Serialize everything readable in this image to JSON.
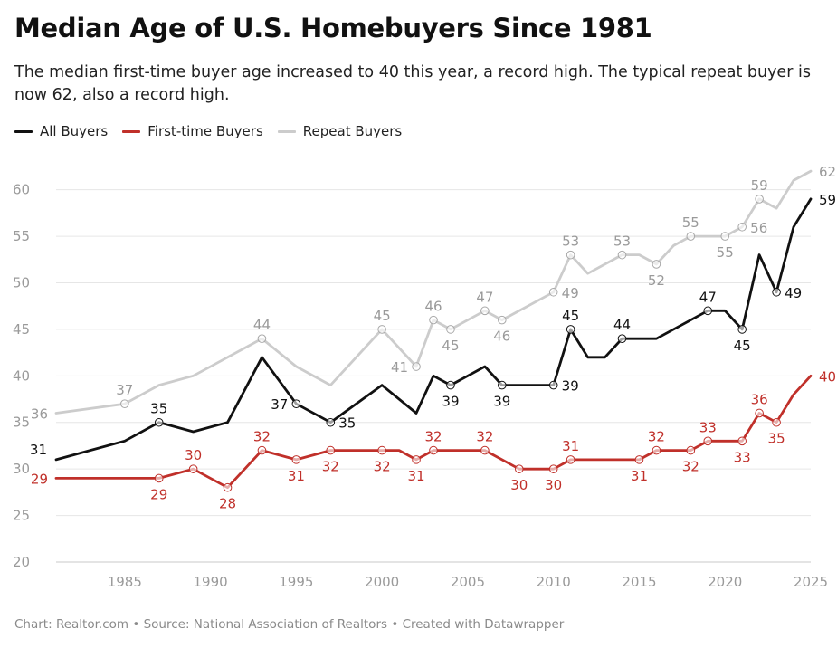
{
  "chart_data": {
    "type": "line",
    "title": "Median Age of U.S. Homebuyers Since 1981",
    "subtitle": "The median first-time buyer age increased to 40 this year, a record high. The typical repeat buyer is now 62, also a record high.",
    "footer": "Chart: Realtor.com • Source: National Association of Realtors • Created with Datawrapper",
    "xlim": [
      1981,
      2025
    ],
    "ylim": [
      20,
      62
    ],
    "yticks": [
      20,
      25,
      30,
      35,
      40,
      45,
      50,
      55,
      60
    ],
    "xticks": [
      1985,
      1990,
      1995,
      2000,
      2005,
      2010,
      2015,
      2020,
      2025
    ],
    "grid": true,
    "legend_position": "top-left",
    "series": [
      {
        "name": "Repeat Buyers",
        "color": "#cccccc",
        "label_color": "#9a9a9a",
        "points": [
          [
            1981,
            36
          ],
          [
            1985,
            37
          ],
          [
            1987,
            39
          ],
          [
            1989,
            40
          ],
          [
            1991,
            42
          ],
          [
            1993,
            44
          ],
          [
            1995,
            41
          ],
          [
            1997,
            39
          ],
          [
            2000,
            45
          ],
          [
            2002,
            41
          ],
          [
            2003,
            46
          ],
          [
            2004,
            45
          ],
          [
            2006,
            47
          ],
          [
            2007,
            46
          ],
          [
            2010,
            49
          ],
          [
            2011,
            53
          ],
          [
            2012,
            51
          ],
          [
            2014,
            53
          ],
          [
            2015,
            53
          ],
          [
            2016,
            52
          ],
          [
            2017,
            54
          ],
          [
            2018,
            55
          ],
          [
            2020,
            55
          ],
          [
            2021,
            56
          ],
          [
            2022,
            59
          ],
          [
            2023,
            58
          ],
          [
            2024,
            61
          ],
          [
            2025,
            62
          ]
        ],
        "markers": [
          [
            1985,
            37
          ],
          [
            1993,
            44
          ],
          [
            2000,
            45
          ],
          [
            2002,
            41
          ],
          [
            2003,
            46
          ],
          [
            2004,
            45
          ],
          [
            2006,
            47
          ],
          [
            2007,
            46
          ],
          [
            2010,
            49
          ],
          [
            2011,
            53
          ],
          [
            2014,
            53
          ],
          [
            2016,
            52
          ],
          [
            2018,
            55
          ],
          [
            2020,
            55
          ],
          [
            2021,
            56
          ],
          [
            2022,
            59
          ]
        ],
        "labels": [
          {
            "x": 1981,
            "y": 36,
            "text": "36",
            "pos": "left"
          },
          {
            "x": 1985,
            "y": 37,
            "text": "37",
            "pos": "above"
          },
          {
            "x": 1993,
            "y": 44,
            "text": "44",
            "pos": "above"
          },
          {
            "x": 2000,
            "y": 45,
            "text": "45",
            "pos": "above"
          },
          {
            "x": 2002,
            "y": 41,
            "text": "41",
            "pos": "left"
          },
          {
            "x": 2003,
            "y": 46,
            "text": "46",
            "pos": "above"
          },
          {
            "x": 2004,
            "y": 45,
            "text": "45",
            "pos": "below"
          },
          {
            "x": 2006,
            "y": 47,
            "text": "47",
            "pos": "above"
          },
          {
            "x": 2007,
            "y": 46,
            "text": "46",
            "pos": "below"
          },
          {
            "x": 2010,
            "y": 49,
            "text": "49",
            "pos": "right"
          },
          {
            "x": 2011,
            "y": 53,
            "text": "53",
            "pos": "above"
          },
          {
            "x": 2014,
            "y": 53,
            "text": "53",
            "pos": "above"
          },
          {
            "x": 2016,
            "y": 52,
            "text": "52",
            "pos": "below"
          },
          {
            "x": 2018,
            "y": 55,
            "text": "55",
            "pos": "above"
          },
          {
            "x": 2020,
            "y": 55,
            "text": "55",
            "pos": "below"
          },
          {
            "x": 2021,
            "y": 56,
            "text": "56",
            "pos": "right"
          },
          {
            "x": 2022,
            "y": 59,
            "text": "59",
            "pos": "above"
          },
          {
            "x": 2025,
            "y": 62,
            "text": "62",
            "pos": "right"
          }
        ]
      },
      {
        "name": "All Buyers",
        "color": "#111111",
        "label_color": "#111111",
        "points": [
          [
            1981,
            31
          ],
          [
            1985,
            33
          ],
          [
            1987,
            35
          ],
          [
            1989,
            34
          ],
          [
            1991,
            35
          ],
          [
            1993,
            42
          ],
          [
            1995,
            37
          ],
          [
            1997,
            35
          ],
          [
            2000,
            39
          ],
          [
            2002,
            36
          ],
          [
            2003,
            40
          ],
          [
            2004,
            39
          ],
          [
            2006,
            41
          ],
          [
            2007,
            39
          ],
          [
            2010,
            39
          ],
          [
            2011,
            45
          ],
          [
            2012,
            42
          ],
          [
            2013,
            42
          ],
          [
            2014,
            44
          ],
          [
            2016,
            44
          ],
          [
            2019,
            47
          ],
          [
            2020,
            47
          ],
          [
            2021,
            45
          ],
          [
            2022,
            53
          ],
          [
            2023,
            49
          ],
          [
            2024,
            56
          ],
          [
            2025,
            59
          ]
        ],
        "markers": [
          [
            1987,
            35
          ],
          [
            1995,
            37
          ],
          [
            1997,
            35
          ],
          [
            2004,
            39
          ],
          [
            2007,
            39
          ],
          [
            2010,
            39
          ],
          [
            2011,
            45
          ],
          [
            2014,
            44
          ],
          [
            2019,
            47
          ],
          [
            2021,
            45
          ],
          [
            2023,
            49
          ]
        ],
        "labels": [
          {
            "x": 1981,
            "y": 31,
            "text": "31",
            "pos": "aboveleft"
          },
          {
            "x": 1987,
            "y": 35,
            "text": "35",
            "pos": "above"
          },
          {
            "x": 1995,
            "y": 37,
            "text": "37",
            "pos": "left"
          },
          {
            "x": 1997,
            "y": 35,
            "text": "35",
            "pos": "right"
          },
          {
            "x": 2004,
            "y": 39,
            "text": "39",
            "pos": "below"
          },
          {
            "x": 2007,
            "y": 39,
            "text": "39",
            "pos": "below"
          },
          {
            "x": 2010,
            "y": 39,
            "text": "39",
            "pos": "right"
          },
          {
            "x": 2011,
            "y": 45,
            "text": "45",
            "pos": "above"
          },
          {
            "x": 2014,
            "y": 44,
            "text": "44",
            "pos": "above"
          },
          {
            "x": 2019,
            "y": 47,
            "text": "47",
            "pos": "above"
          },
          {
            "x": 2021,
            "y": 45,
            "text": "45",
            "pos": "below"
          },
          {
            "x": 2023,
            "y": 49,
            "text": "49",
            "pos": "right"
          },
          {
            "x": 2025,
            "y": 59,
            "text": "59",
            "pos": "right"
          }
        ]
      },
      {
        "name": "First-time Buyers",
        "color": "#c0302a",
        "label_color": "#c0302a",
        "points": [
          [
            1981,
            29
          ],
          [
            1985,
            29
          ],
          [
            1987,
            29
          ],
          [
            1989,
            30
          ],
          [
            1991,
            28
          ],
          [
            1993,
            32
          ],
          [
            1995,
            31
          ],
          [
            1997,
            32
          ],
          [
            2000,
            32
          ],
          [
            2001,
            32
          ],
          [
            2002,
            31
          ],
          [
            2003,
            32
          ],
          [
            2004,
            32
          ],
          [
            2006,
            32
          ],
          [
            2008,
            30
          ],
          [
            2010,
            30
          ],
          [
            2011,
            31
          ],
          [
            2012,
            31
          ],
          [
            2013,
            31
          ],
          [
            2014,
            31
          ],
          [
            2015,
            31
          ],
          [
            2016,
            32
          ],
          [
            2017,
            32
          ],
          [
            2018,
            32
          ],
          [
            2019,
            33
          ],
          [
            2020,
            33
          ],
          [
            2021,
            33
          ],
          [
            2022,
            36
          ],
          [
            2023,
            35
          ],
          [
            2024,
            38
          ],
          [
            2025,
            40
          ]
        ],
        "markers": [
          [
            1987,
            29
          ],
          [
            1989,
            30
          ],
          [
            1991,
            28
          ],
          [
            1993,
            32
          ],
          [
            1995,
            31
          ],
          [
            1997,
            32
          ],
          [
            2000,
            32
          ],
          [
            2002,
            31
          ],
          [
            2003,
            32
          ],
          [
            2006,
            32
          ],
          [
            2008,
            30
          ],
          [
            2010,
            30
          ],
          [
            2011,
            31
          ],
          [
            2015,
            31
          ],
          [
            2016,
            32
          ],
          [
            2018,
            32
          ],
          [
            2019,
            33
          ],
          [
            2021,
            33
          ],
          [
            2022,
            36
          ],
          [
            2023,
            35
          ]
        ],
        "labels": [
          {
            "x": 1981,
            "y": 29,
            "text": "29",
            "pos": "left"
          },
          {
            "x": 1987,
            "y": 29,
            "text": "29",
            "pos": "below"
          },
          {
            "x": 1989,
            "y": 30,
            "text": "30",
            "pos": "above"
          },
          {
            "x": 1991,
            "y": 28,
            "text": "28",
            "pos": "below"
          },
          {
            "x": 1993,
            "y": 32,
            "text": "32",
            "pos": "above"
          },
          {
            "x": 1995,
            "y": 31,
            "text": "31",
            "pos": "below"
          },
          {
            "x": 1997,
            "y": 32,
            "text": "32",
            "pos": "below"
          },
          {
            "x": 2000,
            "y": 32,
            "text": "32",
            "pos": "below"
          },
          {
            "x": 2002,
            "y": 31,
            "text": "31",
            "pos": "below"
          },
          {
            "x": 2003,
            "y": 32,
            "text": "32",
            "pos": "above"
          },
          {
            "x": 2006,
            "y": 32,
            "text": "32",
            "pos": "above"
          },
          {
            "x": 2008,
            "y": 30,
            "text": "30",
            "pos": "below"
          },
          {
            "x": 2010,
            "y": 30,
            "text": "30",
            "pos": "below"
          },
          {
            "x": 2011,
            "y": 31,
            "text": "31",
            "pos": "above"
          },
          {
            "x": 2015,
            "y": 31,
            "text": "31",
            "pos": "below"
          },
          {
            "x": 2016,
            "y": 32,
            "text": "32",
            "pos": "above"
          },
          {
            "x": 2018,
            "y": 32,
            "text": "32",
            "pos": "below"
          },
          {
            "x": 2019,
            "y": 33,
            "text": "33",
            "pos": "above"
          },
          {
            "x": 2021,
            "y": 33,
            "text": "33",
            "pos": "below"
          },
          {
            "x": 2022,
            "y": 36,
            "text": "36",
            "pos": "above"
          },
          {
            "x": 2023,
            "y": 35,
            "text": "35",
            "pos": "below"
          },
          {
            "x": 2025,
            "y": 40,
            "text": "40",
            "pos": "right"
          }
        ]
      }
    ],
    "legend": [
      {
        "name": "All Buyers",
        "color": "#111111"
      },
      {
        "name": "First-time Buyers",
        "color": "#c0302a"
      },
      {
        "name": "Repeat Buyers",
        "color": "#cccccc"
      }
    ]
  }
}
